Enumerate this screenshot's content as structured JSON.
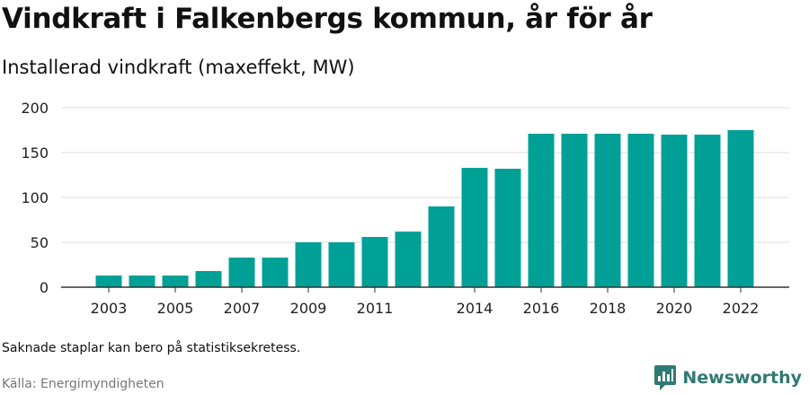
{
  "header": {
    "title": "Vindkraft i Falkenbergs kommun, år för år",
    "subtitle": "Installerad vindkraft (maxeffekt, MW)"
  },
  "footer": {
    "note": "Saknade staplar kan bero på statistiksekretess.",
    "source": "Källa: Energimyndigheten",
    "brand_name": "Newsworthy",
    "brand_icon": "newsworthy-logo-icon",
    "brand_color": "#2f7a72"
  },
  "chart_data": {
    "type": "bar",
    "title": "Vindkraft i Falkenbergs kommun, år för år",
    "subtitle": "Installerad vindkraft (maxeffekt, MW)",
    "xlabel": "",
    "ylabel": "",
    "categories": [
      "2003",
      "2004",
      "2005",
      "2006",
      "2007",
      "2008",
      "2009",
      "2010",
      "2011",
      "2012",
      "2013",
      "2014",
      "2015",
      "2016",
      "2017",
      "2018",
      "2019",
      "2020",
      "2021",
      "2022"
    ],
    "values": [
      13,
      13,
      13,
      18,
      33,
      33,
      50,
      50,
      56,
      62,
      90,
      133,
      132,
      171,
      171,
      171,
      171,
      170,
      170,
      175
    ],
    "x_tick_labels": [
      "2003",
      "2005",
      "2007",
      "2009",
      "2011",
      "2014",
      "2016",
      "2018",
      "2020",
      "2022"
    ],
    "y_ticks": [
      0,
      50,
      100,
      150,
      200
    ],
    "ylim": [
      0,
      200
    ],
    "grid": true,
    "legend": "none",
    "bar_color": "#00a096",
    "grid_color": "#dddddd",
    "axis_color": "#333333"
  }
}
